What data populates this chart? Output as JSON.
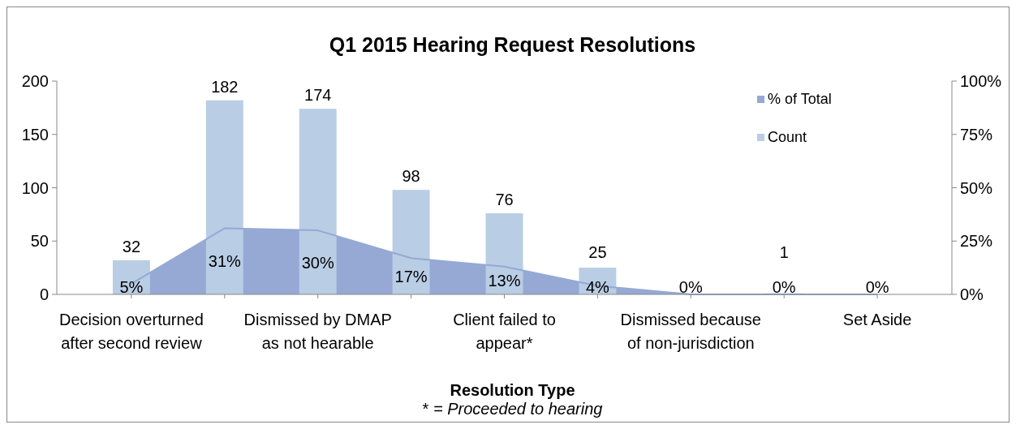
{
  "chart_data": {
    "type": "bar",
    "title": "Q1 2015 Hearing Request Resolutions",
    "xlabel": "Resolution Type",
    "annotations": [
      "* = Proceeded to hearing"
    ],
    "categories": [
      "Decision overturned after second review",
      null,
      "Dismissed by DMAP as not hearable",
      null,
      "Client failed to appear*",
      null,
      "Dismissed because of non-jurisdiction",
      null,
      "Set Aside"
    ],
    "series": [
      {
        "name": "% of Total",
        "type": "area",
        "axis": "y2",
        "color": "#95a9d4",
        "values": [
          5,
          31,
          30,
          17,
          13,
          4,
          0,
          0,
          0
        ],
        "value_labels": [
          "5%",
          "31%",
          "30%",
          "17%",
          "13%",
          "4%",
          "0%",
          "0%",
          "0%"
        ]
      },
      {
        "name": "Count",
        "color": "#b9cde5",
        "values": [
          32,
          182,
          174,
          98,
          76,
          25,
          0,
          1,
          0
        ],
        "value_labels": [
          "32",
          "182",
          "174",
          "98",
          "76",
          "25",
          null,
          "1",
          null
        ]
      }
    ],
    "ylim": [
      0,
      200
    ],
    "yticks": [
      0,
      50,
      100,
      150,
      200
    ],
    "y2lim": [
      0,
      100
    ],
    "y2ticks": [
      {
        "value": 0,
        "label": "0%"
      },
      {
        "value": 25,
        "label": "25%"
      },
      {
        "value": 50,
        "label": "50%"
      },
      {
        "value": 75,
        "label": "75%"
      },
      {
        "value": 100,
        "label": "100%"
      }
    ],
    "legend": "top right",
    "grid": false
  }
}
